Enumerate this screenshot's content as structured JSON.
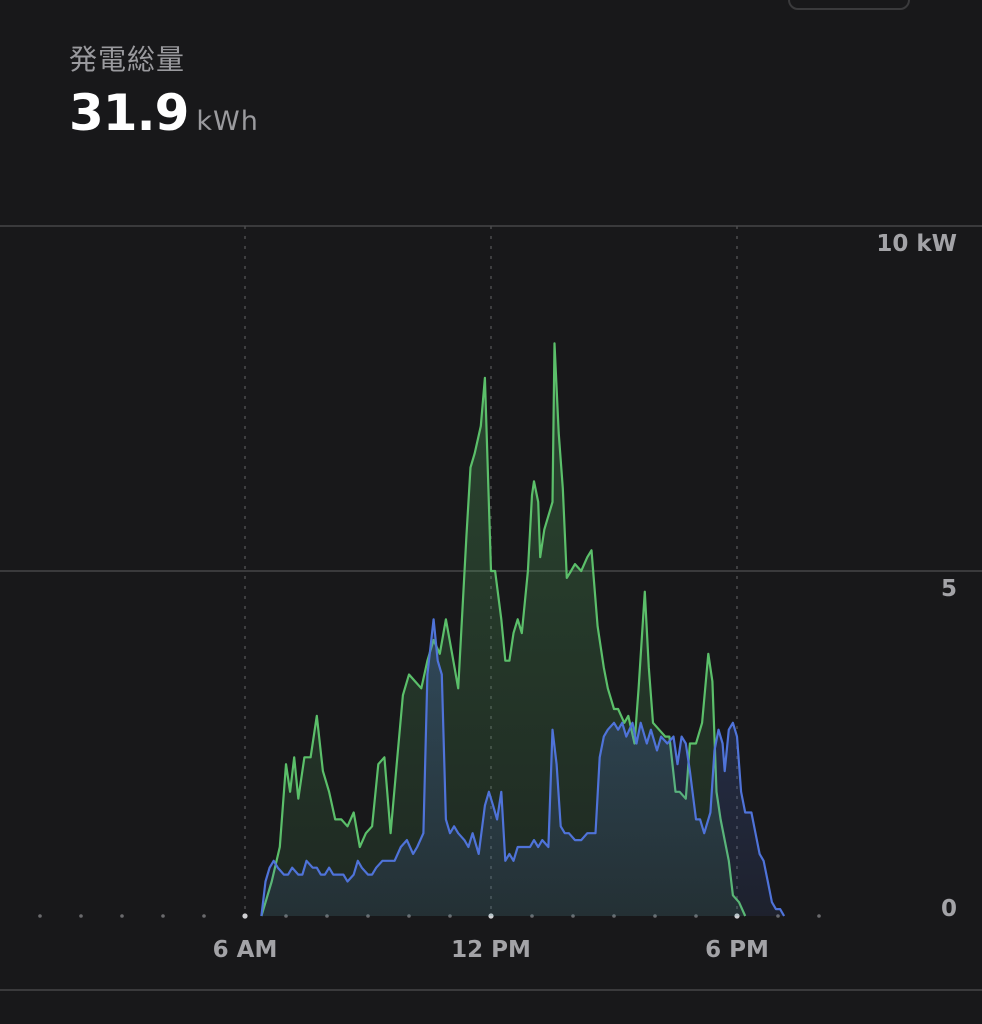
{
  "header": {
    "label": "発電総量",
    "value": "31.9",
    "unit": "kWh"
  },
  "colors": {
    "background": "#18181a",
    "grid": "#3a3a3c",
    "series_green": "#5bbf6a",
    "series_blue": "#4f73d9"
  },
  "chart_data": {
    "type": "area",
    "x_unit": "hour of day",
    "xlim": [
      1,
      20
    ],
    "ylim": [
      0,
      10
    ],
    "y_unit": "kW",
    "y_ticks": [
      {
        "value": 10,
        "label": "10 kW"
      },
      {
        "value": 5,
        "label": "5"
      },
      {
        "value": 0,
        "label": "0"
      }
    ],
    "x_ticks": [
      {
        "value": 6,
        "label": "6 AM"
      },
      {
        "value": 12,
        "label": "12 PM"
      },
      {
        "value": 18,
        "label": "6 PM"
      }
    ],
    "grid": true,
    "series": [
      {
        "color": "#5bbf6a",
        "points": [
          [
            6.4,
            0
          ],
          [
            6.65,
            0.5
          ],
          [
            6.85,
            1.0
          ],
          [
            7.0,
            2.2
          ],
          [
            7.1,
            1.8
          ],
          [
            7.2,
            2.3
          ],
          [
            7.3,
            1.7
          ],
          [
            7.45,
            2.3
          ],
          [
            7.6,
            2.3
          ],
          [
            7.75,
            2.9
          ],
          [
            7.9,
            2.1
          ],
          [
            8.05,
            1.8
          ],
          [
            8.2,
            1.4
          ],
          [
            8.35,
            1.4
          ],
          [
            8.5,
            1.3
          ],
          [
            8.65,
            1.5
          ],
          [
            8.8,
            1.0
          ],
          [
            8.95,
            1.2
          ],
          [
            9.1,
            1.3
          ],
          [
            9.25,
            2.2
          ],
          [
            9.4,
            2.3
          ],
          [
            9.55,
            1.2
          ],
          [
            9.7,
            2.2
          ],
          [
            9.85,
            3.2
          ],
          [
            10.0,
            3.5
          ],
          [
            10.15,
            3.4
          ],
          [
            10.3,
            3.3
          ],
          [
            10.45,
            3.7
          ],
          [
            10.6,
            4.0
          ],
          [
            10.75,
            3.8
          ],
          [
            10.9,
            4.3
          ],
          [
            11.05,
            3.8
          ],
          [
            11.2,
            3.3
          ],
          [
            11.4,
            5.5
          ],
          [
            11.5,
            6.5
          ],
          [
            11.6,
            6.7
          ],
          [
            11.75,
            7.1
          ],
          [
            11.85,
            7.8
          ],
          [
            12.0,
            5.0
          ],
          [
            12.1,
            5.0
          ],
          [
            12.25,
            4.3
          ],
          [
            12.35,
            3.7
          ],
          [
            12.45,
            3.7
          ],
          [
            12.55,
            4.1
          ],
          [
            12.65,
            4.3
          ],
          [
            12.75,
            4.1
          ],
          [
            12.9,
            5.0
          ],
          [
            13.0,
            6.1
          ],
          [
            13.05,
            6.3
          ],
          [
            13.15,
            6.0
          ],
          [
            13.2,
            5.2
          ],
          [
            13.3,
            5.6
          ],
          [
            13.5,
            6.0
          ],
          [
            13.55,
            8.3
          ],
          [
            13.65,
            7.0
          ],
          [
            13.75,
            6.2
          ],
          [
            13.85,
            4.9
          ],
          [
            13.95,
            5.0
          ],
          [
            14.05,
            5.1
          ],
          [
            14.2,
            5.0
          ],
          [
            14.35,
            5.2
          ],
          [
            14.45,
            5.3
          ],
          [
            14.6,
            4.2
          ],
          [
            14.75,
            3.6
          ],
          [
            14.85,
            3.3
          ],
          [
            15.0,
            3.0
          ],
          [
            15.1,
            3.0
          ],
          [
            15.25,
            2.8
          ],
          [
            15.35,
            2.9
          ],
          [
            15.5,
            2.5
          ],
          [
            15.6,
            3.3
          ],
          [
            15.75,
            4.7
          ],
          [
            15.85,
            3.6
          ],
          [
            15.95,
            2.8
          ],
          [
            16.1,
            2.7
          ],
          [
            16.25,
            2.6
          ],
          [
            16.35,
            2.6
          ],
          [
            16.5,
            1.8
          ],
          [
            16.6,
            1.8
          ],
          [
            16.75,
            1.7
          ],
          [
            16.85,
            2.5
          ],
          [
            17.0,
            2.5
          ],
          [
            17.15,
            2.8
          ],
          [
            17.3,
            3.8
          ],
          [
            17.4,
            3.4
          ],
          [
            17.5,
            1.8
          ],
          [
            17.6,
            1.4
          ],
          [
            17.7,
            1.1
          ],
          [
            17.8,
            0.8
          ],
          [
            17.9,
            0.3
          ],
          [
            18.05,
            0.2
          ],
          [
            18.2,
            0
          ]
        ]
      },
      {
        "color": "#4f73d9",
        "points": [
          [
            6.4,
            0
          ],
          [
            6.5,
            0.5
          ],
          [
            6.6,
            0.7
          ],
          [
            6.7,
            0.8
          ],
          [
            6.8,
            0.7
          ],
          [
            6.95,
            0.6
          ],
          [
            7.05,
            0.6
          ],
          [
            7.15,
            0.7
          ],
          [
            7.3,
            0.6
          ],
          [
            7.4,
            0.6
          ],
          [
            7.5,
            0.8
          ],
          [
            7.65,
            0.7
          ],
          [
            7.75,
            0.7
          ],
          [
            7.85,
            0.6
          ],
          [
            7.95,
            0.6
          ],
          [
            8.05,
            0.7
          ],
          [
            8.15,
            0.6
          ],
          [
            8.25,
            0.6
          ],
          [
            8.4,
            0.6
          ],
          [
            8.5,
            0.5
          ],
          [
            8.65,
            0.6
          ],
          [
            8.75,
            0.8
          ],
          [
            8.85,
            0.7
          ],
          [
            9.0,
            0.6
          ],
          [
            9.1,
            0.6
          ],
          [
            9.2,
            0.7
          ],
          [
            9.35,
            0.8
          ],
          [
            9.5,
            0.8
          ],
          [
            9.65,
            0.8
          ],
          [
            9.8,
            1.0
          ],
          [
            9.95,
            1.1
          ],
          [
            10.1,
            0.9
          ],
          [
            10.2,
            1.0
          ],
          [
            10.35,
            1.2
          ],
          [
            10.45,
            3.5
          ],
          [
            10.6,
            4.3
          ],
          [
            10.7,
            3.7
          ],
          [
            10.8,
            3.5
          ],
          [
            10.9,
            1.4
          ],
          [
            11.0,
            1.2
          ],
          [
            11.1,
            1.3
          ],
          [
            11.2,
            1.2
          ],
          [
            11.35,
            1.1
          ],
          [
            11.45,
            1.0
          ],
          [
            11.55,
            1.2
          ],
          [
            11.7,
            0.9
          ],
          [
            11.85,
            1.6
          ],
          [
            11.95,
            1.8
          ],
          [
            12.05,
            1.6
          ],
          [
            12.15,
            1.4
          ],
          [
            12.25,
            1.8
          ],
          [
            12.35,
            0.8
          ],
          [
            12.45,
            0.9
          ],
          [
            12.55,
            0.8
          ],
          [
            12.65,
            1.0
          ],
          [
            12.75,
            1.0
          ],
          [
            12.85,
            1.0
          ],
          [
            12.95,
            1.0
          ],
          [
            13.05,
            1.1
          ],
          [
            13.15,
            1.0
          ],
          [
            13.25,
            1.1
          ],
          [
            13.4,
            1.0
          ],
          [
            13.5,
            2.7
          ],
          [
            13.6,
            2.2
          ],
          [
            13.7,
            1.3
          ],
          [
            13.8,
            1.2
          ],
          [
            13.9,
            1.2
          ],
          [
            14.05,
            1.1
          ],
          [
            14.2,
            1.1
          ],
          [
            14.35,
            1.2
          ],
          [
            14.45,
            1.2
          ],
          [
            14.55,
            1.2
          ],
          [
            14.65,
            2.3
          ],
          [
            14.75,
            2.6
          ],
          [
            14.85,
            2.7
          ],
          [
            15.0,
            2.8
          ],
          [
            15.1,
            2.7
          ],
          [
            15.2,
            2.8
          ],
          [
            15.3,
            2.6
          ],
          [
            15.45,
            2.8
          ],
          [
            15.55,
            2.5
          ],
          [
            15.65,
            2.8
          ],
          [
            15.8,
            2.5
          ],
          [
            15.9,
            2.7
          ],
          [
            16.05,
            2.4
          ],
          [
            16.15,
            2.6
          ],
          [
            16.3,
            2.5
          ],
          [
            16.45,
            2.6
          ],
          [
            16.55,
            2.2
          ],
          [
            16.65,
            2.6
          ],
          [
            16.75,
            2.5
          ],
          [
            16.85,
            2.1
          ],
          [
            17.0,
            1.4
          ],
          [
            17.1,
            1.4
          ],
          [
            17.2,
            1.2
          ],
          [
            17.35,
            1.5
          ],
          [
            17.45,
            2.4
          ],
          [
            17.55,
            2.7
          ],
          [
            17.65,
            2.5
          ],
          [
            17.7,
            2.1
          ],
          [
            17.8,
            2.7
          ],
          [
            17.9,
            2.8
          ],
          [
            18.0,
            2.6
          ],
          [
            18.1,
            1.8
          ],
          [
            18.2,
            1.5
          ],
          [
            18.35,
            1.5
          ],
          [
            18.45,
            1.2
          ],
          [
            18.55,
            0.9
          ],
          [
            18.65,
            0.8
          ],
          [
            18.75,
            0.5
          ],
          [
            18.85,
            0.2
          ],
          [
            18.95,
            0.1
          ],
          [
            19.05,
            0.1
          ],
          [
            19.15,
            0
          ]
        ]
      }
    ]
  }
}
